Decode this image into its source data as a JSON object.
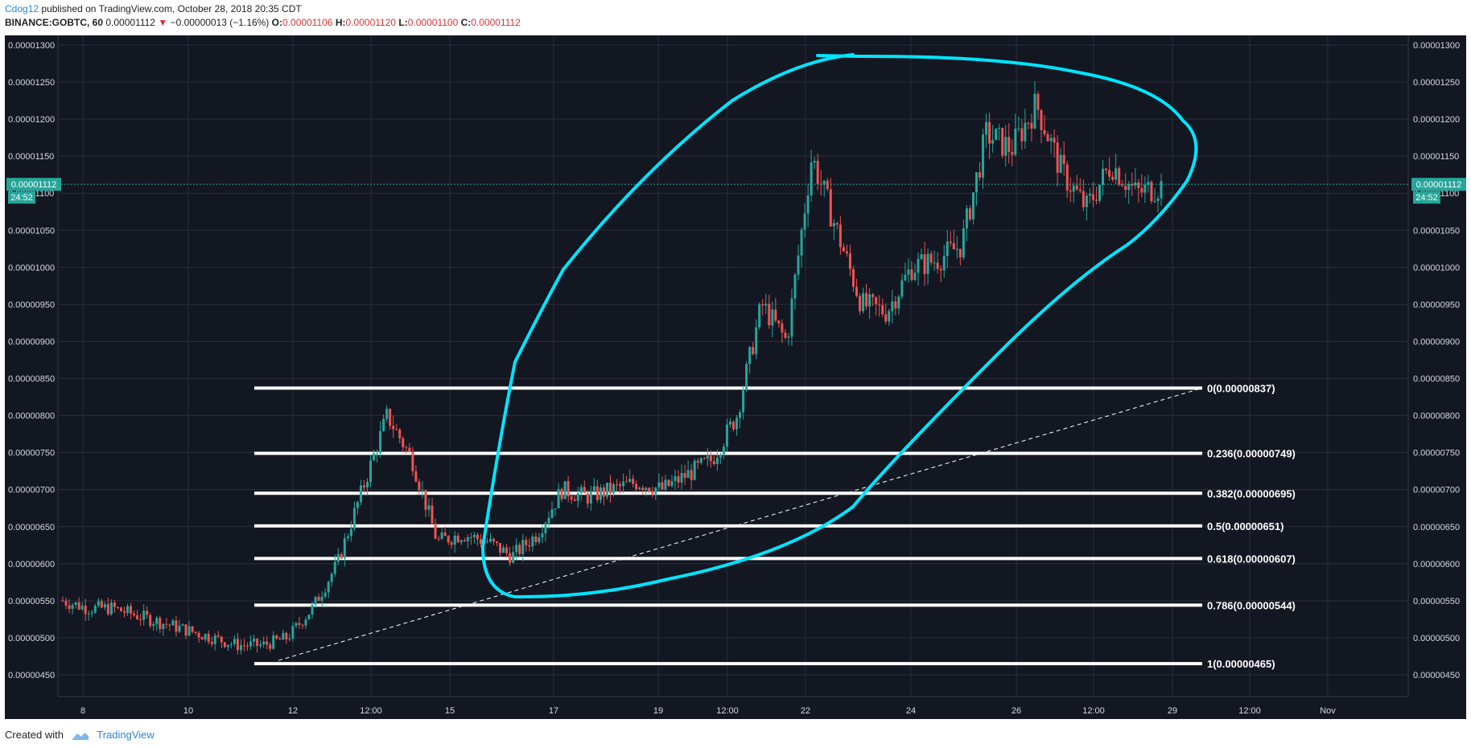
{
  "header": {
    "author": "Cdog12",
    "published": "published on TradingView.com, October 28, 2018 20:35 CDT",
    "symbol": "BINANCE:GOBTC, 60",
    "last": "0.00001112",
    "change": "−0.00000013 (−1.16%)",
    "o_label": "O:",
    "o": "0.00001106",
    "h_label": "H:",
    "h": "0.00001120",
    "l_label": "L:",
    "l": "0.00001100",
    "c_label": "C:",
    "c": "0.00001112"
  },
  "footer": {
    "created": "Created with",
    "brand": "TradingView"
  },
  "colors": {
    "background": "#131722",
    "grid": "#2a2e39",
    "up": "#26a69a",
    "down": "#ef5350",
    "fib_line": "#ffffff",
    "ellipse": "#00e5ff",
    "price_tag": "#26a69a"
  },
  "chart_data": {
    "type": "candlestick",
    "y_ticks": [
      "0.00000450",
      "0.00000500",
      "0.00000550",
      "0.00000600",
      "0.00000650",
      "0.00000700",
      "0.00000750",
      "0.00000800",
      "0.00000850",
      "0.00000900",
      "0.00000950",
      "0.00001000",
      "0.00001050",
      "0.00001100",
      "0.00001150",
      "0.00001200",
      "0.00001250",
      "0.00001300"
    ],
    "ylim": [
      4.3e-06,
      1.32e-05
    ],
    "x_ticks": [
      "8",
      "10",
      "12",
      "12:00",
      "15",
      "17",
      "19",
      "12:00",
      "22",
      "24",
      "26",
      "12:00",
      "29",
      "12:00",
      "Nov"
    ],
    "current_price": "0.00001112",
    "countdown": "24:52",
    "fib_levels": [
      {
        "label": "0(0.00000837)",
        "value": 8.37e-06
      },
      {
        "label": "0.236(0.00000749)",
        "value": 7.49e-06
      },
      {
        "label": "0.382(0.00000695)",
        "value": 6.95e-06
      },
      {
        "label": "0.5(0.00000651)",
        "value": 6.51e-06
      },
      {
        "label": "0.618(0.00000607)",
        "value": 6.07e-06
      },
      {
        "label": "0.786(0.00000544)",
        "value": 5.44e-06
      },
      {
        "label": "1(0.00000465)",
        "value": 4.65e-06
      }
    ],
    "trendline": {
      "from": 4.65e-06,
      "to": 8.37e-06
    },
    "price_path": [
      5.5e-06,
      5.4e-06,
      5.4e-06,
      5.3e-06,
      5.2e-06,
      5.1e-06,
      5e-06,
      4.9e-06,
      4.9e-06,
      5e-06,
      5.4e-06,
      6e-06,
      7e-06,
      8e-06,
      7.4e-06,
      6.3e-06,
      6.4e-06,
      6.3e-06,
      6.1e-06,
      6.4e-06,
      7e-06,
      6.9e-06,
      7e-06,
      7.1e-06,
      7e-06,
      7.2e-06,
      7.4e-06,
      8e-06,
      9.5e-06,
      9e-06,
      1.15e-05,
      1.05e-05,
      9.5e-06,
      9.4e-06,
      1e-05,
      1.01e-05,
      1.03e-05,
      1.18e-05,
      1.16e-05,
      1.22e-05,
      1.13e-05,
      1.08e-05,
      1.14e-05,
      1.1e-05,
      1.11e-05
    ]
  }
}
